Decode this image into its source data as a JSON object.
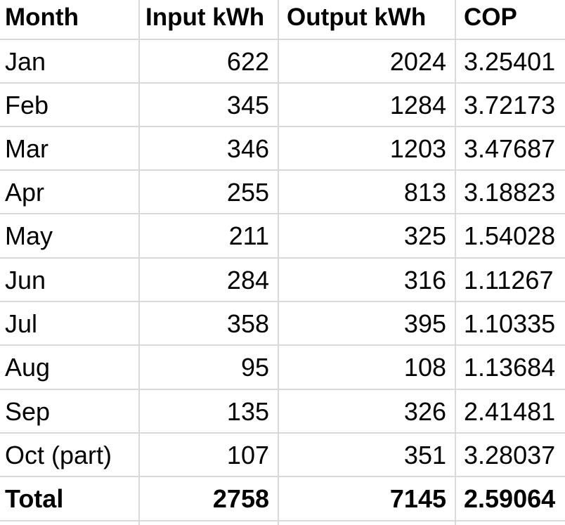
{
  "table": {
    "headers": [
      "Month",
      "Input kWh",
      "Output kWh",
      "COP"
    ],
    "rows": [
      [
        "Jan",
        "622",
        "2024",
        "3.25401"
      ],
      [
        "Feb",
        "345",
        "1284",
        "3.72173"
      ],
      [
        "Mar",
        "346",
        "1203",
        "3.47687"
      ],
      [
        "Apr",
        "255",
        "813",
        "3.18823"
      ],
      [
        "May",
        "211",
        "325",
        "1.54028"
      ],
      [
        "Jun",
        "284",
        "316",
        "1.11267"
      ],
      [
        "Jul",
        "358",
        "395",
        "1.10335"
      ],
      [
        "Aug",
        "95",
        "108",
        "1.13684"
      ],
      [
        "Sep",
        "135",
        "326",
        "2.41481"
      ],
      [
        "Oct (part)",
        "107",
        "351",
        "3.28037"
      ]
    ],
    "total": [
      "Total",
      "2758",
      "7145",
      "2.59064"
    ]
  },
  "colors": {
    "gridline": "#d9d9d9",
    "text": "#000000",
    "background": "#ffffff"
  }
}
